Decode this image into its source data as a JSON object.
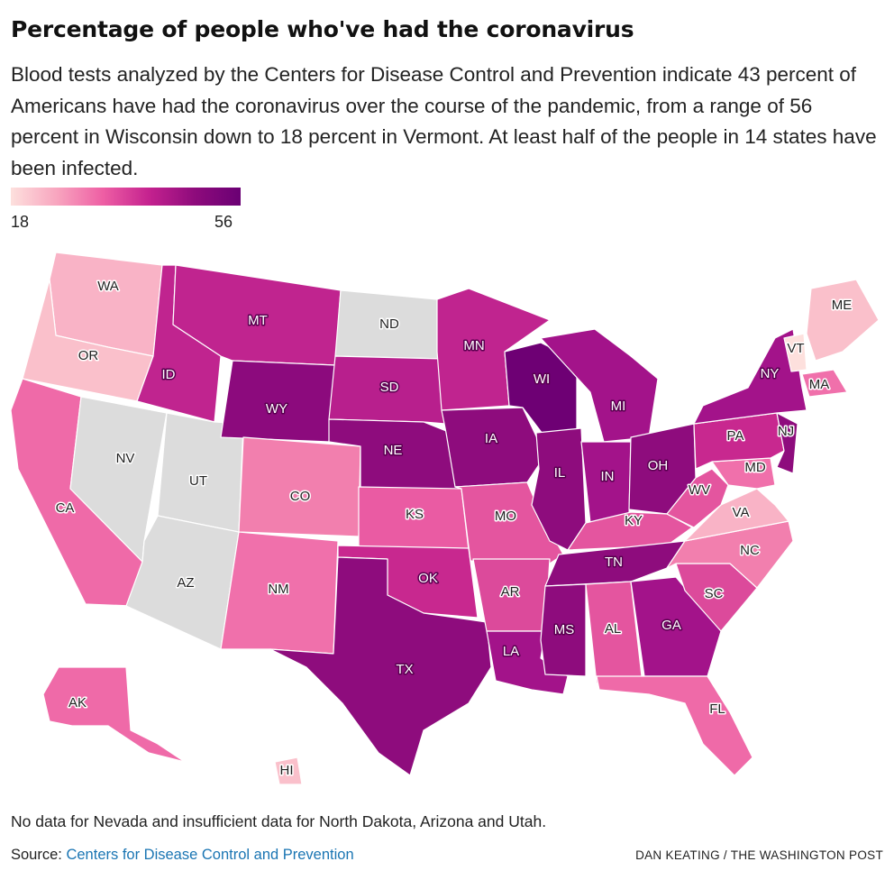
{
  "title": "Percentage of people who've had the coronavirus",
  "description": "Blood tests analyzed by the Centers for Disease Control and Prevention indicate 43 percent of Americans have had the coronavirus over the course of the pandemic, from a range of 56 percent in Wisconsin down to 18 percent in Vermont. At least half of the people in 14 states have been infected.",
  "legend": {
    "min": "18",
    "max": "56",
    "min_value": 18,
    "max_value": 56,
    "colors": [
      "#fde0dd",
      "#f8a5bf",
      "#ee5fa4",
      "#c5228f",
      "#8e0b7c",
      "#6a0074"
    ],
    "no_data_color": "#dcdcdc"
  },
  "note": "No data for Nevada and insufficient data for North Dakota, Arizona and Utah.",
  "source": {
    "label": "Source:",
    "link_text": "Centers for Disease Control and Prevention"
  },
  "credit": "DAN KEATING / THE WASHINGTON POST",
  "states": [
    {
      "abbr": "WA",
      "fill": "#f9b3c6"
    },
    {
      "abbr": "OR",
      "fill": "#fac0cb"
    },
    {
      "abbr": "CA",
      "fill": "#ef6aa8"
    },
    {
      "abbr": "ID",
      "fill": "#c0248f"
    },
    {
      "abbr": "NV",
      "fill": "#dcdcdc"
    },
    {
      "abbr": "UT",
      "fill": "#dcdcdc"
    },
    {
      "abbr": "AZ",
      "fill": "#dcdcdc"
    },
    {
      "abbr": "MT",
      "fill": "#c0248f"
    },
    {
      "abbr": "WY",
      "fill": "#8c0a7d"
    },
    {
      "abbr": "CO",
      "fill": "#f27fae"
    },
    {
      "abbr": "NM",
      "fill": "#f070ab"
    },
    {
      "abbr": "ND",
      "fill": "#dcdcdc"
    },
    {
      "abbr": "SD",
      "fill": "#b81f8d"
    },
    {
      "abbr": "NE",
      "fill": "#8e0c7d"
    },
    {
      "abbr": "KS",
      "fill": "#ea5ba3"
    },
    {
      "abbr": "OK",
      "fill": "#c8288f"
    },
    {
      "abbr": "TX",
      "fill": "#8e0c7d"
    },
    {
      "abbr": "MN",
      "fill": "#c0248f"
    },
    {
      "abbr": "IA",
      "fill": "#8e0c7d"
    },
    {
      "abbr": "MO",
      "fill": "#e4559f"
    },
    {
      "abbr": "AR",
      "fill": "#dc4a9b"
    },
    {
      "abbr": "LA",
      "fill": "#a3138a"
    },
    {
      "abbr": "WI",
      "fill": "#6e0074"
    },
    {
      "abbr": "IL",
      "fill": "#8e0c7d"
    },
    {
      "abbr": "MI",
      "fill": "#a3138a"
    },
    {
      "abbr": "IN",
      "fill": "#a3138a"
    },
    {
      "abbr": "OH",
      "fill": "#8e0c7d"
    },
    {
      "abbr": "KY",
      "fill": "#e4559f"
    },
    {
      "abbr": "TN",
      "fill": "#8e0c7d"
    },
    {
      "abbr": "MS",
      "fill": "#8e0c7d"
    },
    {
      "abbr": "AL",
      "fill": "#e4559f"
    },
    {
      "abbr": "GA",
      "fill": "#a3138a"
    },
    {
      "abbr": "FL",
      "fill": "#ef6aa8"
    },
    {
      "abbr": "SC",
      "fill": "#dc4a9b"
    },
    {
      "abbr": "NC",
      "fill": "#f27fae"
    },
    {
      "abbr": "VA",
      "fill": "#f9b3c6"
    },
    {
      "abbr": "WV",
      "fill": "#e4559f"
    },
    {
      "abbr": "MD",
      "fill": "#f070ab"
    },
    {
      "abbr": "PA",
      "fill": "#c8288f"
    },
    {
      "abbr": "NY",
      "fill": "#a3138a"
    },
    {
      "abbr": "NJ",
      "fill": "#8e0c7d"
    },
    {
      "abbr": "MA",
      "fill": "#f070ab"
    },
    {
      "abbr": "VT",
      "fill": "#fde0dd"
    },
    {
      "abbr": "ME",
      "fill": "#fac0cb"
    },
    {
      "abbr": "AK",
      "fill": "#ef6aa8"
    },
    {
      "abbr": "HI",
      "fill": "#fac0cb"
    }
  ]
}
